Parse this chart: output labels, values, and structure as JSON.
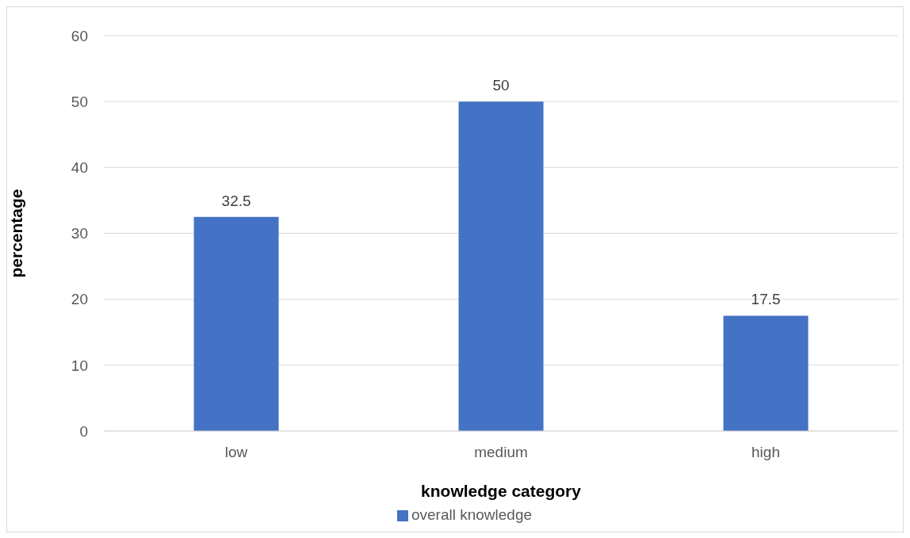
{
  "chart_data": {
    "type": "bar",
    "xlabel": "knowledge category",
    "ylabel": "percentage",
    "categories": [
      "low",
      "medium",
      "high"
    ],
    "series": [
      {
        "name": "overall knowledge",
        "color": "#4472c4",
        "values": [
          32.5,
          50,
          17.5
        ]
      }
    ],
    "ylim": [
      0,
      60
    ],
    "yticks": [
      0,
      10,
      20,
      30,
      40,
      50,
      60
    ],
    "grid": "y",
    "legend": "bottom",
    "data_labels": true
  }
}
